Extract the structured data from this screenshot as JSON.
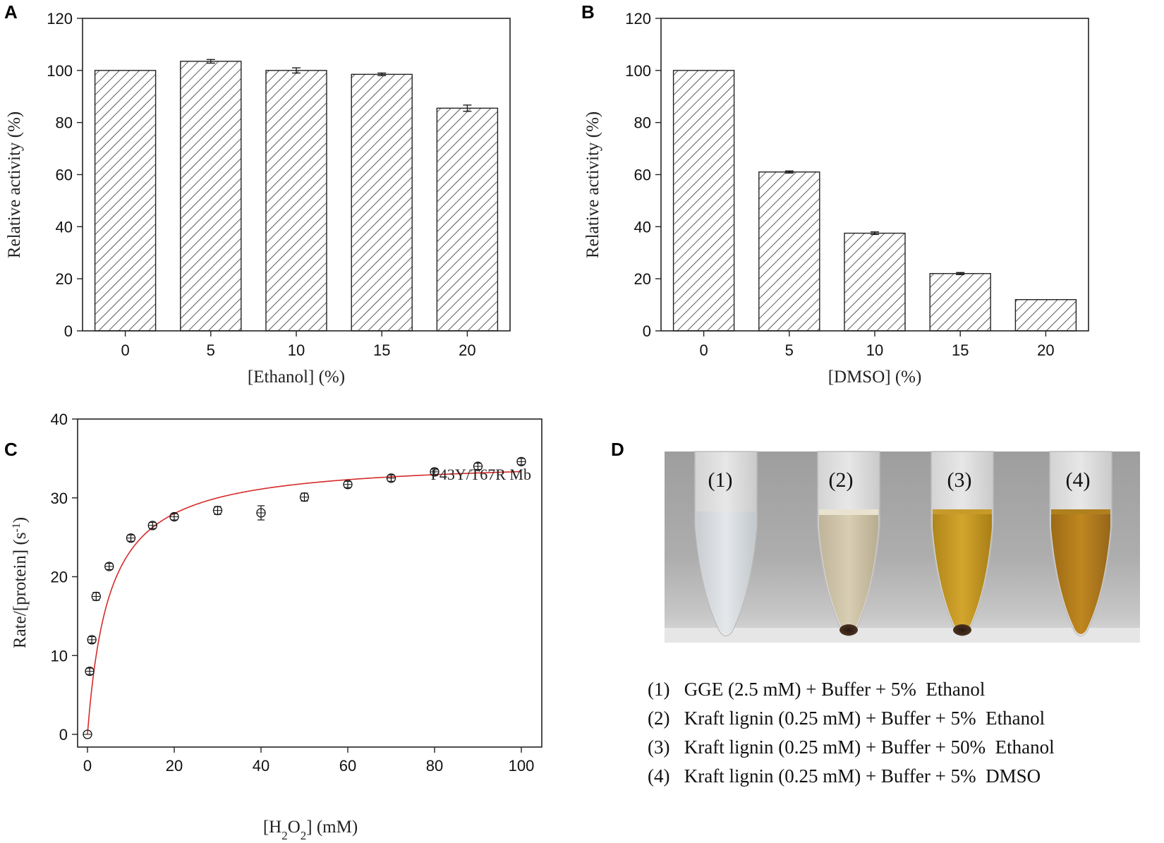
{
  "panels": {
    "A": "A",
    "B": "B",
    "C": "C",
    "D": "D"
  },
  "chart_data": [
    {
      "id": "A",
      "type": "bar",
      "pattern": "diagonal-hatch",
      "categories": [
        "0",
        "5",
        "10",
        "15",
        "20"
      ],
      "values": [
        100,
        103.5,
        100,
        98.5,
        85.5
      ],
      "errors": [
        0,
        0.7,
        1.0,
        0.5,
        1.2
      ],
      "xlabel": "[Ethanol] (%)",
      "ylabel": "Relative activity (%)",
      "ylim": [
        0,
        120
      ],
      "yticks": [
        0,
        20,
        40,
        60,
        80,
        100,
        120
      ]
    },
    {
      "id": "B",
      "type": "bar",
      "pattern": "diagonal-hatch",
      "categories": [
        "0",
        "5",
        "10",
        "15",
        "20"
      ],
      "values": [
        100,
        61,
        37.5,
        22,
        12
      ],
      "errors": [
        0,
        0.4,
        0.5,
        0.4,
        0
      ],
      "xlabel": "[DMSO] (%)",
      "ylabel": "Relative activity (%)",
      "ylim": [
        0,
        120
      ],
      "yticks": [
        0,
        20,
        40,
        60,
        80,
        100,
        120
      ]
    },
    {
      "id": "C",
      "type": "scatter",
      "series_label": "F43Y/T67R Mb",
      "x": [
        0,
        0.5,
        1,
        2,
        5,
        10,
        15,
        20,
        30,
        40,
        50,
        60,
        70,
        80,
        90,
        100
      ],
      "y": [
        0,
        8,
        12,
        17.5,
        21.3,
        24.9,
        26.5,
        27.6,
        28.4,
        28.1,
        30.1,
        31.7,
        32.5,
        33.3,
        34.0,
        34.6
      ],
      "errors": [
        0,
        0.4,
        0.4,
        0.5,
        0.4,
        0.4,
        0.4,
        0.4,
        0.5,
        0.9,
        0.5,
        0.4,
        0.4,
        0.4,
        0.4,
        0.4
      ],
      "fit": {
        "model": "Michaelis-Menten",
        "vmax": 35.0,
        "km": 5.0,
        "color": "#d62a2a"
      },
      "xlabel_parts": [
        "[H",
        "2",
        "O",
        "2",
        "] (mM)"
      ],
      "ylabel_parts": [
        "Rate/[protein] (s",
        "-1",
        ")"
      ],
      "xlim": [
        0,
        100
      ],
      "ylim": [
        0,
        40
      ],
      "xticks": [
        0,
        20,
        40,
        60,
        80,
        100
      ],
      "yticks": [
        0,
        10,
        20,
        30,
        40
      ]
    }
  ],
  "photo": {
    "tube_labels": [
      "(1)",
      "(2)",
      "(3)",
      "(4)"
    ]
  },
  "legend_lines": [
    "(1)   GGE (2.5 mM) + Buffer + 5%  Ethanol",
    "(2)   Kraft lignin (0.25 mM) + Buffer + 5%  Ethanol",
    "(3)   Kraft lignin (0.25 mM) + Buffer + 50%  Ethanol",
    "(4)   Kraft lignin (0.25 mM) + Buffer + 5%  DMSO"
  ]
}
